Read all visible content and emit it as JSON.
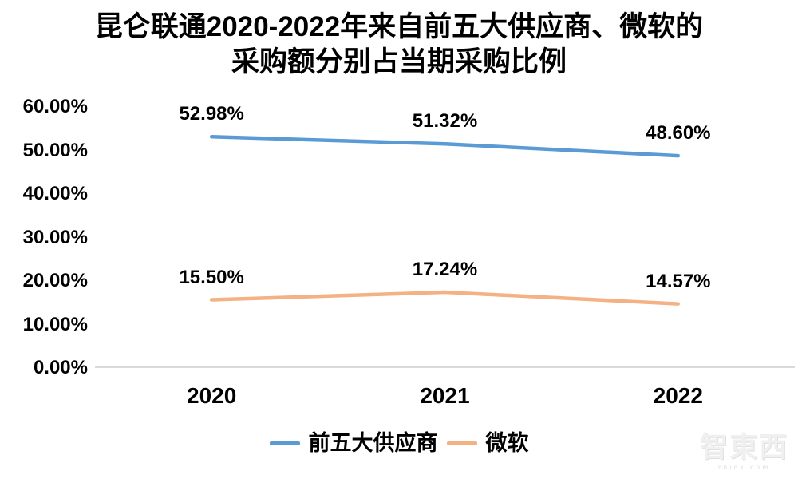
{
  "title": "昆仑联通2020-2022年来自前五大供应商、微软的\n采购额分别占当期采购比例",
  "chart_data": {
    "type": "line",
    "categories": [
      "2020",
      "2021",
      "2022"
    ],
    "series": [
      {
        "name": "前五大供应商",
        "color": "#5B9BD5",
        "values": [
          52.98,
          51.32,
          48.6
        ],
        "labels": [
          "52.98%",
          "51.32%",
          "48.60%"
        ]
      },
      {
        "name": "微软",
        "color": "#F4B183",
        "values": [
          15.5,
          17.24,
          14.57
        ],
        "labels": [
          "15.50%",
          "17.24%",
          "14.57%"
        ]
      }
    ],
    "y_ticks": [
      "60.00%",
      "50.00%",
      "40.00%",
      "30.00%",
      "20.00%",
      "10.00%",
      "0.00%"
    ],
    "y_tick_values": [
      60,
      50,
      40,
      30,
      20,
      10,
      0
    ],
    "ylim": [
      0,
      60
    ],
    "xlabel": "",
    "ylabel": "",
    "grid": false,
    "legend_position": "bottom",
    "data_labels_shown": true
  },
  "legend": {
    "items": [
      {
        "label": "前五大供应商",
        "color": "#5B9BD5"
      },
      {
        "label": "微软",
        "color": "#F4B183"
      }
    ]
  },
  "watermark": {
    "logo": "智東西",
    "site": "zhidx.com"
  },
  "colors": {
    "background": "#FFFFFF",
    "text": "#000000",
    "axis_line": "#D9D9D9",
    "series_blue": "#5B9BD5",
    "series_orange": "#F4B183"
  }
}
